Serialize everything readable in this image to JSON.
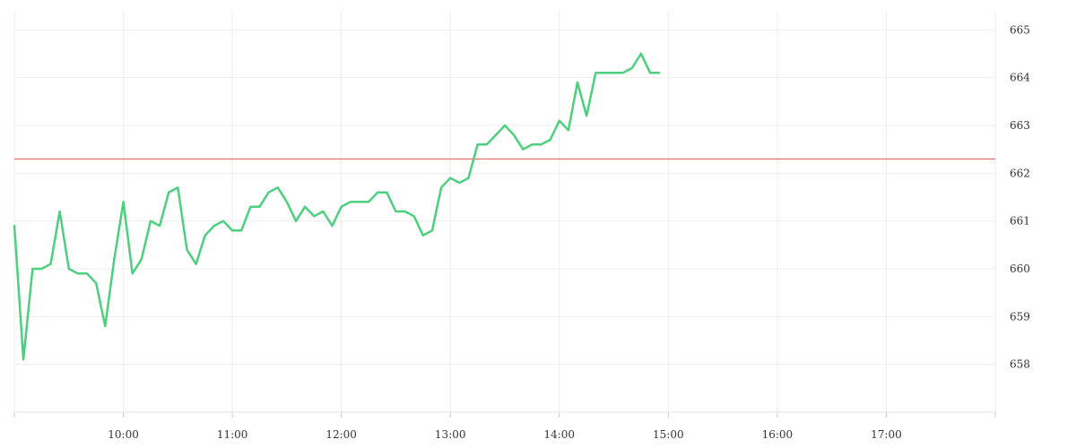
{
  "chart_data": {
    "type": "line",
    "title": "",
    "xlabel": "",
    "ylabel": "",
    "x_ticks": [
      "10:00",
      "11:00",
      "12:00",
      "13:00",
      "14:00",
      "15:00",
      "16:00",
      "17:00"
    ],
    "y_ticks": [
      658,
      659,
      660,
      661,
      662,
      663,
      664,
      665
    ],
    "xlim": [
      "9:00",
      "18:00"
    ],
    "ylim": [
      657,
      665.4
    ],
    "grid": true,
    "reference_line": {
      "value": 662.3,
      "color": "#e05555"
    },
    "series": [
      {
        "color": "#4cd07d",
        "x": [
          "9:00",
          "9:05",
          "9:10",
          "9:15",
          "9:20",
          "9:25",
          "9:30",
          "9:35",
          "9:40",
          "9:45",
          "9:50",
          "9:55",
          "10:00",
          "10:05",
          "10:10",
          "10:15",
          "10:20",
          "10:25",
          "10:30",
          "10:35",
          "10:40",
          "10:45",
          "10:50",
          "10:55",
          "11:00",
          "11:05",
          "11:10",
          "11:15",
          "11:20",
          "11:25",
          "11:30",
          "11:35",
          "11:40",
          "11:45",
          "11:50",
          "11:55",
          "12:00",
          "12:05",
          "12:10",
          "12:15",
          "12:20",
          "12:25",
          "12:30",
          "12:35",
          "12:40",
          "12:45",
          "12:50",
          "12:55",
          "13:00",
          "13:05",
          "13:10",
          "13:15",
          "13:20",
          "13:25",
          "13:30",
          "13:35",
          "13:40",
          "13:45",
          "13:50",
          "13:55",
          "14:00",
          "14:05",
          "14:10",
          "14:15",
          "14:20",
          "14:25",
          "14:30",
          "14:35",
          "14:40",
          "14:45",
          "14:50",
          "14:55"
        ],
        "values": [
          660.9,
          658.1,
          660.0,
          660.0,
          660.1,
          661.2,
          660.0,
          659.9,
          659.9,
          659.7,
          658.8,
          660.2,
          661.4,
          659.9,
          660.2,
          661.0,
          660.9,
          661.6,
          661.7,
          660.4,
          660.1,
          660.7,
          660.9,
          661.0,
          660.8,
          660.8,
          661.3,
          661.3,
          661.6,
          661.7,
          661.4,
          661.0,
          661.3,
          661.1,
          661.2,
          660.9,
          661.3,
          661.4,
          661.4,
          661.4,
          661.6,
          661.6,
          661.2,
          661.2,
          661.1,
          660.7,
          660.8,
          661.7,
          661.9,
          661.8,
          661.9,
          662.6,
          662.6,
          662.8,
          663.0,
          662.8,
          662.5,
          662.6,
          662.6,
          662.7,
          663.1,
          662.9,
          663.9,
          663.2,
          664.1,
          664.1,
          664.1,
          664.1,
          664.2,
          664.5,
          664.1,
          664.1
        ]
      }
    ]
  }
}
